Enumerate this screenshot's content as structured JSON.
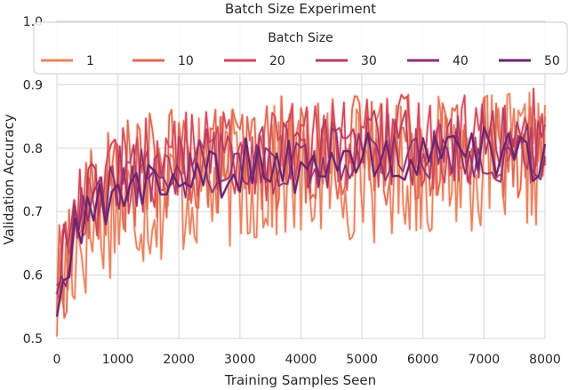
{
  "chart_data": {
    "type": "line",
    "title": "Batch Size Experiment",
    "xlabel": "Training Samples Seen",
    "ylabel": "Validation Accuracy",
    "xlim": [
      0,
      8000
    ],
    "ylim": [
      0.5,
      1.0
    ],
    "xticks": [
      0,
      1000,
      2000,
      3000,
      4000,
      5000,
      6000,
      7000,
      8000
    ],
    "yticks": [
      0.5,
      0.6,
      0.7,
      0.8,
      0.9,
      1.0
    ],
    "ytick_labels": [
      "0.5",
      "0.6",
      "0.7",
      "0.8",
      "0.9",
      "1.0"
    ],
    "grid": true,
    "legend": {
      "title": "Batch Size",
      "placement": "top",
      "columns": 6,
      "entries": [
        "1",
        "10",
        "20",
        "30",
        "40",
        "50"
      ]
    },
    "series": [
      {
        "name": "1",
        "color": "#e8825f",
        "x": [
          0,
          200,
          400,
          600,
          800,
          1000,
          1200,
          1400,
          1600,
          1800,
          2000,
          2200,
          2400,
          2600,
          2800,
          3000,
          3200,
          3400,
          3600,
          3800,
          4000,
          4200,
          4400,
          4600,
          4800,
          5000,
          5200,
          5400,
          5600,
          5800,
          6000,
          6200,
          6400,
          6600,
          6800,
          7000,
          7200,
          7400,
          7600,
          7800,
          8000
        ],
        "values": [
          0.56,
          0.62,
          0.66,
          0.68,
          0.7,
          0.71,
          0.71,
          0.72,
          0.72,
          0.73,
          0.73,
          0.74,
          0.74,
          0.74,
          0.75,
          0.75,
          0.75,
          0.75,
          0.76,
          0.76,
          0.75,
          0.76,
          0.76,
          0.76,
          0.76,
          0.77,
          0.76,
          0.77,
          0.77,
          0.77,
          0.77,
          0.77,
          0.78,
          0.77,
          0.78,
          0.78,
          0.77,
          0.78,
          0.78,
          0.78,
          0.78
        ]
      },
      {
        "name": "10",
        "color": "#e0694f",
        "x": [
          0,
          200,
          400,
          600,
          800,
          1000,
          1200,
          1400,
          1600,
          1800,
          2000,
          2200,
          2400,
          2600,
          2800,
          3000,
          3200,
          3400,
          3600,
          3800,
          4000,
          4200,
          4400,
          4600,
          4800,
          5000,
          5200,
          5400,
          5600,
          5800,
          6000,
          6200,
          6400,
          6600,
          6800,
          7000,
          7200,
          7400,
          7600,
          7800,
          8000
        ],
        "values": [
          0.58,
          0.64,
          0.7,
          0.72,
          0.74,
          0.75,
          0.76,
          0.76,
          0.77,
          0.77,
          0.78,
          0.78,
          0.78,
          0.78,
          0.79,
          0.79,
          0.79,
          0.79,
          0.79,
          0.8,
          0.79,
          0.8,
          0.8,
          0.8,
          0.8,
          0.8,
          0.8,
          0.8,
          0.81,
          0.8,
          0.81,
          0.81,
          0.81,
          0.81,
          0.81,
          0.81,
          0.81,
          0.81,
          0.81,
          0.81,
          0.82
        ]
      },
      {
        "name": "20",
        "color": "#d3485a",
        "x": [
          0,
          200,
          400,
          600,
          800,
          1000,
          1200,
          1400,
          1600,
          1800,
          2000,
          2200,
          2400,
          2600,
          2800,
          3000,
          3200,
          3400,
          3600,
          3800,
          4000,
          4200,
          4400,
          4600,
          4800,
          5000,
          5200,
          5400,
          5600,
          5800,
          6000,
          6200,
          6400,
          6600,
          6800,
          7000,
          7200,
          7400,
          7600,
          7800,
          8000
        ],
        "values": [
          0.6,
          0.66,
          0.71,
          0.73,
          0.75,
          0.76,
          0.77,
          0.77,
          0.78,
          0.78,
          0.78,
          0.79,
          0.79,
          0.79,
          0.79,
          0.8,
          0.8,
          0.79,
          0.8,
          0.8,
          0.8,
          0.8,
          0.8,
          0.81,
          0.8,
          0.81,
          0.81,
          0.81,
          0.81,
          0.81,
          0.81,
          0.81,
          0.81,
          0.82,
          0.81,
          0.82,
          0.81,
          0.82,
          0.82,
          0.82,
          0.82
        ]
      },
      {
        "name": "30",
        "color": "#b73a63",
        "x": [
          0,
          200,
          400,
          600,
          800,
          1000,
          1200,
          1400,
          1600,
          1800,
          2000,
          2200,
          2400,
          2600,
          2800,
          3000,
          3200,
          3400,
          3600,
          3800,
          4000,
          4200,
          4400,
          4600,
          4800,
          5000,
          5200,
          5400,
          5600,
          5800,
          6000,
          6200,
          6400,
          6600,
          6800,
          7000,
          7200,
          7400,
          7600,
          7800,
          8000
        ],
        "values": [
          0.6,
          0.65,
          0.7,
          0.72,
          0.74,
          0.75,
          0.76,
          0.76,
          0.77,
          0.77,
          0.77,
          0.78,
          0.78,
          0.78,
          0.78,
          0.79,
          0.79,
          0.78,
          0.79,
          0.79,
          0.79,
          0.79,
          0.79,
          0.8,
          0.79,
          0.8,
          0.8,
          0.8,
          0.8,
          0.8,
          0.8,
          0.8,
          0.8,
          0.81,
          0.8,
          0.81,
          0.8,
          0.81,
          0.81,
          0.81,
          0.81
        ]
      },
      {
        "name": "40",
        "color": "#8e2f6f",
        "x": [
          0,
          200,
          400,
          600,
          800,
          1000,
          1200,
          1400,
          1600,
          1800,
          2000,
          2200,
          2400,
          2600,
          2800,
          3000,
          3200,
          3400,
          3600,
          3800,
          4000,
          4200,
          4400,
          4600,
          4800,
          5000,
          5200,
          5400,
          5600,
          5800,
          6000,
          6200,
          6400,
          6600,
          6800,
          7000,
          7200,
          7400,
          7600,
          7800,
          8000
        ],
        "values": [
          0.58,
          0.64,
          0.69,
          0.71,
          0.73,
          0.74,
          0.75,
          0.75,
          0.76,
          0.76,
          0.77,
          0.77,
          0.77,
          0.77,
          0.78,
          0.78,
          0.78,
          0.77,
          0.78,
          0.78,
          0.78,
          0.78,
          0.78,
          0.79,
          0.78,
          0.79,
          0.79,
          0.79,
          0.79,
          0.79,
          0.79,
          0.79,
          0.79,
          0.8,
          0.79,
          0.8,
          0.79,
          0.8,
          0.8,
          0.8,
          0.8
        ]
      },
      {
        "name": "50",
        "color": "#6a2470",
        "x": [
          0,
          200,
          400,
          600,
          800,
          1000,
          1200,
          1400,
          1600,
          1800,
          2000,
          2200,
          2400,
          2600,
          2800,
          3000,
          3200,
          3400,
          3600,
          3800,
          4000,
          4200,
          4400,
          4600,
          4800,
          5000,
          5200,
          5400,
          5600,
          5800,
          6000,
          6200,
          6400,
          6600,
          6800,
          7000,
          7200,
          7400,
          7600,
          7800,
          8000
        ],
        "values": [
          0.54,
          0.62,
          0.67,
          0.7,
          0.72,
          0.73,
          0.74,
          0.74,
          0.75,
          0.75,
          0.76,
          0.76,
          0.76,
          0.76,
          0.77,
          0.77,
          0.77,
          0.76,
          0.77,
          0.77,
          0.77,
          0.77,
          0.77,
          0.78,
          0.77,
          0.78,
          0.78,
          0.78,
          0.78,
          0.78,
          0.78,
          0.78,
          0.78,
          0.79,
          0.78,
          0.79,
          0.78,
          0.79,
          0.79,
          0.79,
          0.79
        ]
      }
    ]
  }
}
